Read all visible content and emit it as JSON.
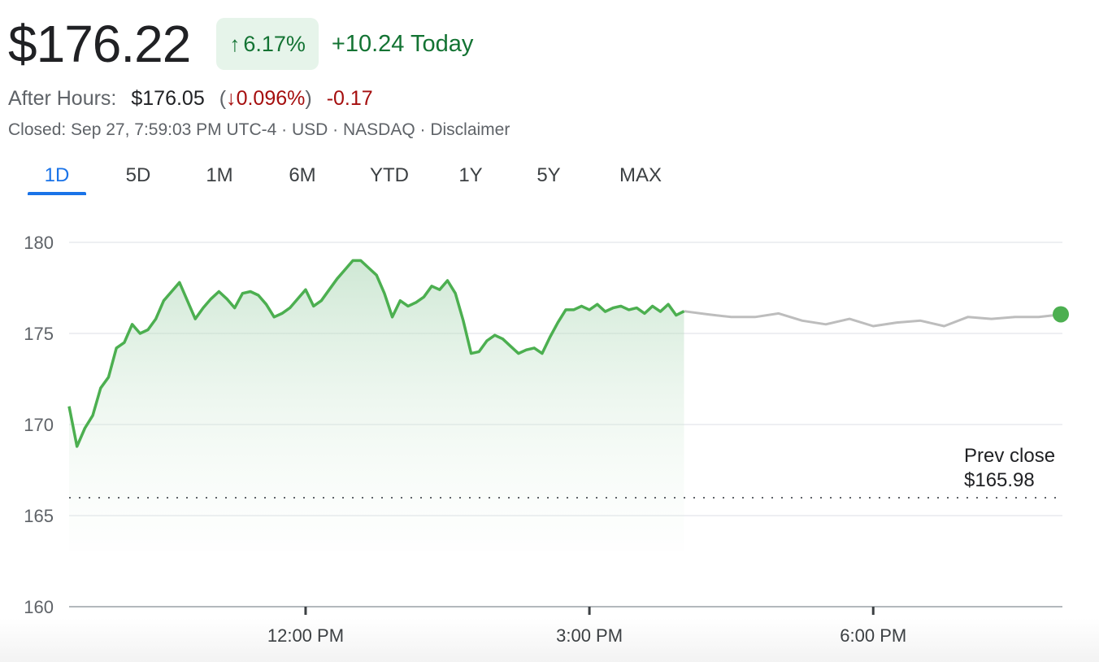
{
  "header": {
    "price": "$176.22",
    "change_pct": "6.17%",
    "change_today": "+10.24 Today",
    "after_hours_label": "After Hours:",
    "after_hours_price": "$176.05",
    "after_hours_pct": "0.096%",
    "after_hours_change": "-0.17",
    "closed_info": "Closed: Sep 27, 7:59:03 PM UTC-4 · USD · NASDAQ · Disclaimer"
  },
  "icons": {
    "up": "arrow-up-icon",
    "down": "arrow-down-icon"
  },
  "tabs": [
    "1D",
    "5D",
    "1M",
    "6M",
    "YTD",
    "1Y",
    "5Y",
    "MAX"
  ],
  "active_tab": "1D",
  "colors": {
    "up": "#137333",
    "down": "#a50e0e",
    "accent": "#1a73e8",
    "line": "#4caf50",
    "after_line": "#bdbdbd"
  },
  "chart_data": {
    "type": "line",
    "ylim": [
      160,
      180
    ],
    "yticks": [
      180,
      175,
      170,
      165,
      160
    ],
    "xticks": [
      "12:00 PM",
      "3:00 PM",
      "6:00 PM"
    ],
    "grid": true,
    "prev_close_label": "Prev close",
    "prev_close_value_text": "$165.98",
    "prev_close": 165.98,
    "series": [
      {
        "session": "regular",
        "x": [
          "9:30",
          "9:35",
          "9:40",
          "9:45",
          "9:50",
          "9:55",
          "10:00",
          "10:05",
          "10:10",
          "10:15",
          "10:20",
          "10:25",
          "10:30",
          "10:35",
          "10:40",
          "10:45",
          "10:50",
          "10:55",
          "11:00",
          "11:05",
          "11:10",
          "11:15",
          "11:20",
          "11:25",
          "11:30",
          "11:35",
          "11:40",
          "11:45",
          "11:50",
          "11:55",
          "12:00",
          "12:05",
          "12:10",
          "12:15",
          "12:20",
          "12:25",
          "12:30",
          "12:35",
          "12:40",
          "12:45",
          "12:50",
          "12:55",
          "13:00",
          "13:05",
          "13:10",
          "13:15",
          "13:20",
          "13:25",
          "13:30",
          "13:35",
          "13:40",
          "13:45",
          "13:50",
          "13:55",
          "14:00",
          "14:05",
          "14:10",
          "14:15",
          "14:20",
          "14:25",
          "14:30",
          "14:35",
          "14:40",
          "14:45",
          "14:50",
          "14:55",
          "15:00",
          "15:05",
          "15:10",
          "15:15",
          "15:20",
          "15:25",
          "15:30",
          "15:35",
          "15:40",
          "15:45",
          "15:50",
          "15:55",
          "16:00"
        ],
        "values": [
          171.0,
          168.8,
          169.8,
          170.5,
          172.0,
          172.6,
          174.2,
          174.5,
          175.5,
          175.0,
          175.2,
          175.8,
          176.8,
          177.3,
          177.8,
          176.8,
          175.8,
          176.4,
          176.9,
          177.3,
          176.9,
          176.4,
          177.2,
          177.3,
          177.1,
          176.6,
          175.9,
          176.1,
          176.4,
          176.9,
          177.4,
          176.5,
          176.8,
          177.4,
          178.0,
          178.5,
          179.0,
          179.0,
          178.6,
          178.2,
          177.2,
          175.9,
          176.8,
          176.5,
          176.7,
          177.0,
          177.6,
          177.4,
          177.9,
          177.2,
          175.7,
          173.9,
          174.0,
          174.6,
          174.9,
          174.7,
          174.3,
          173.9,
          174.1,
          174.2,
          173.9,
          174.8,
          175.6,
          176.3,
          176.3,
          176.5,
          176.3,
          176.6,
          176.2,
          176.4,
          176.5,
          176.3,
          176.4,
          176.1,
          176.5,
          176.2,
          176.6,
          176.0,
          176.22
        ]
      },
      {
        "session": "after-hours",
        "x": [
          "16:00",
          "16:15",
          "16:30",
          "16:45",
          "17:00",
          "17:15",
          "17:30",
          "17:45",
          "18:00",
          "18:15",
          "18:30",
          "18:45",
          "19:00",
          "19:15",
          "19:30",
          "19:45",
          "20:00"
        ],
        "values": [
          176.22,
          176.05,
          175.9,
          175.9,
          176.1,
          175.7,
          175.5,
          175.8,
          175.4,
          175.6,
          175.7,
          175.4,
          175.9,
          175.8,
          175.9,
          175.9,
          176.05
        ]
      }
    ]
  }
}
